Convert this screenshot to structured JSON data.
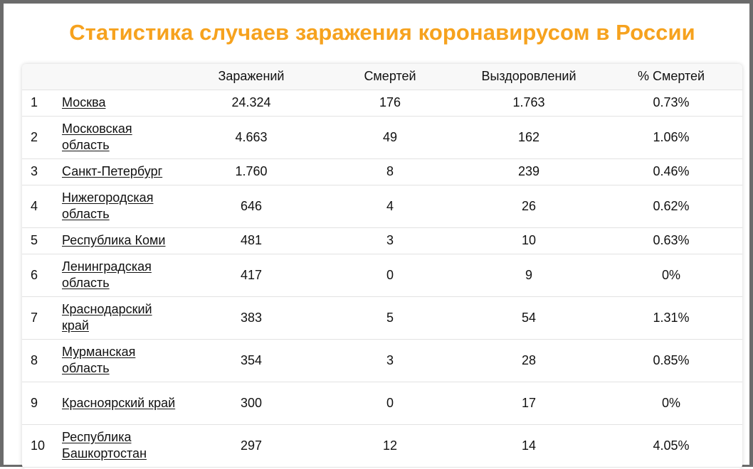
{
  "title": "Статистика случаев заражения коронавирусом в России",
  "table": {
    "headers": [
      "",
      "",
      "Заражений",
      "Смертей",
      "Выздоровлений",
      "% Смертей"
    ],
    "rows": [
      {
        "rank": "1",
        "region": "Москва",
        "infected": "24.324",
        "deaths": "176",
        "recovered": "1.763",
        "death_pct": "0.73%"
      },
      {
        "rank": "2",
        "region": "Московская область",
        "infected": "4.663",
        "deaths": "49",
        "recovered": "162",
        "death_pct": "1.06%"
      },
      {
        "rank": "3",
        "region": "Санкт-Петербург",
        "infected": "1.760",
        "deaths": "8",
        "recovered": "239",
        "death_pct": "0.46%"
      },
      {
        "rank": "4",
        "region": "Нижегородская область",
        "infected": "646",
        "deaths": "4",
        "recovered": "26",
        "death_pct": "0.62%"
      },
      {
        "rank": "5",
        "region": "Республика Коми",
        "infected": "481",
        "deaths": "3",
        "recovered": "10",
        "death_pct": "0.63%"
      },
      {
        "rank": "6",
        "region": "Ленинградская область",
        "infected": "417",
        "deaths": "0",
        "recovered": "9",
        "death_pct": "0%"
      },
      {
        "rank": "7",
        "region": "Краснодарский край",
        "infected": "383",
        "deaths": "5",
        "recovered": "54",
        "death_pct": "1.31%"
      },
      {
        "rank": "8",
        "region": "Мурманская область",
        "infected": "354",
        "deaths": "3",
        "recovered": "28",
        "death_pct": "0.85%"
      },
      {
        "rank": "9",
        "region": "Красноярский край",
        "infected": "300",
        "deaths": "0",
        "recovered": "17",
        "death_pct": "0%"
      },
      {
        "rank": "10",
        "region": "Республика Башкортостан",
        "infected": "297",
        "deaths": "12",
        "recovered": "14",
        "death_pct": "4.05%"
      }
    ]
  },
  "colors": {
    "title": "#f6a21e",
    "frame": "#6b6b6b",
    "row_divider": "#e2e2e2",
    "header_bg": "#f8f8f8"
  }
}
